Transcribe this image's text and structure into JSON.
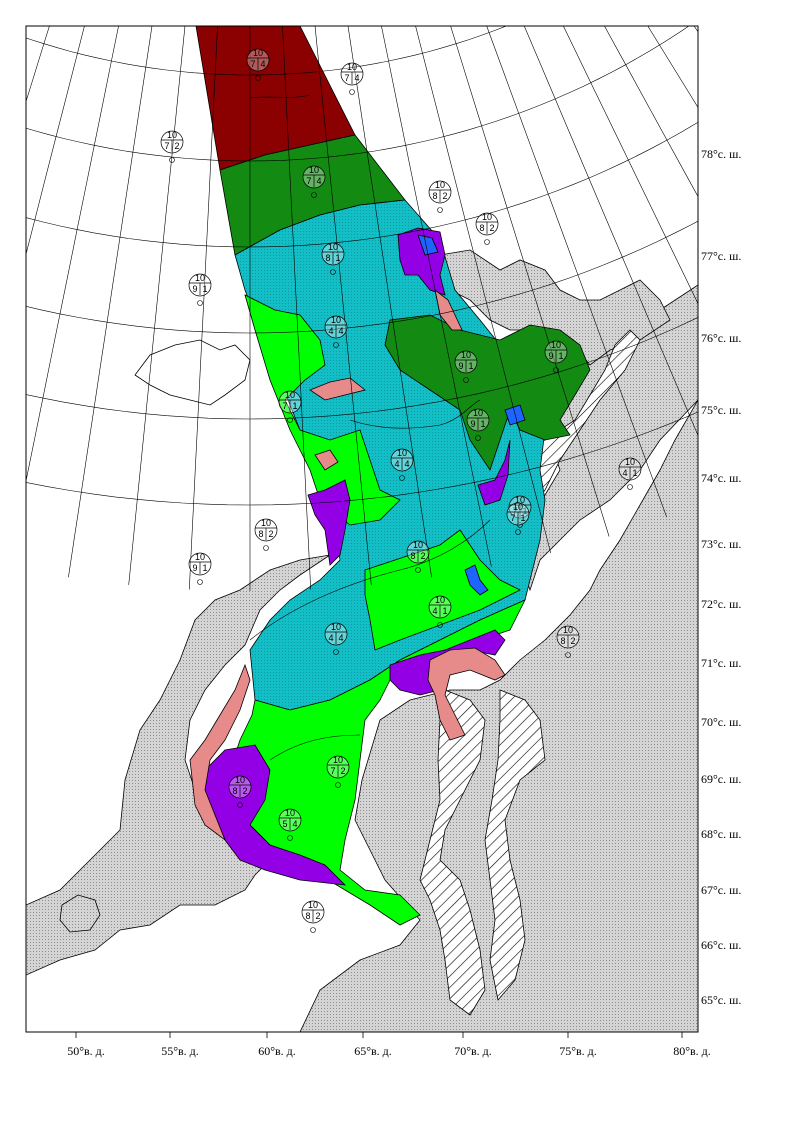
{
  "map": {
    "colors": {
      "background": "#ffffff",
      "land": "#d4d4d4",
      "ice_10_dark_red": "#8b0000",
      "ice_dark_green": "#138b13",
      "ice_cyan": "#12bfc6",
      "ice_light_green": "#00ff00",
      "ice_purple": "#9400e6",
      "ice_pink": "#e78a8a",
      "ice_blue": "#1e64ff",
      "fast_ice_hatch": "#000000"
    },
    "lat_labels": [
      {
        "lat": 78,
        "text": "78°с. ш."
      },
      {
        "lat": 77,
        "text": "77°с. ш."
      },
      {
        "lat": 76,
        "text": "76°с. ш."
      },
      {
        "lat": 75,
        "text": "75°с. ш."
      },
      {
        "lat": 74,
        "text": "74°с. ш."
      },
      {
        "lat": 73,
        "text": "73°с. ш."
      },
      {
        "lat": 72,
        "text": "72°с. ш."
      },
      {
        "lat": 71,
        "text": "71°с. ш."
      },
      {
        "lat": 70,
        "text": "70°с. ш."
      },
      {
        "lat": 69,
        "text": "69°с. ш."
      },
      {
        "lat": 68,
        "text": "68°с. ш."
      },
      {
        "lat": 67,
        "text": "67°с. ш."
      },
      {
        "lat": 66,
        "text": "66°с. ш."
      },
      {
        "lat": 65,
        "text": "65°с. ш."
      }
    ],
    "lon_labels": [
      {
        "lon": 50,
        "text": "50°в. д."
      },
      {
        "lon": 55,
        "text": "55°в. д."
      },
      {
        "lon": 60,
        "text": "60°в. д."
      },
      {
        "lon": 65,
        "text": "65°в. д."
      },
      {
        "lon": 70,
        "text": "70°в. д."
      },
      {
        "lon": 75,
        "text": "75°в. д."
      },
      {
        "lon": 80,
        "text": "80°в. д."
      }
    ],
    "ice_codes": [
      {
        "id": "c1",
        "top": "10",
        "mid": [
          "7",
          "4"
        ]
      },
      {
        "id": "c2",
        "top": "10",
        "mid": [
          "7",
          "4"
        ]
      },
      {
        "id": "c3",
        "top": "10",
        "mid": [
          "7",
          "2"
        ]
      },
      {
        "id": "c4",
        "top": "10",
        "mid": [
          "7",
          "4"
        ]
      },
      {
        "id": "c5",
        "top": "10",
        "mid": [
          "8",
          "2"
        ]
      },
      {
        "id": "c6",
        "top": "10",
        "mid": [
          "8",
          "2"
        ]
      },
      {
        "id": "c7",
        "top": "10",
        "mid": [
          "8",
          "1"
        ]
      },
      {
        "id": "c8",
        "top": "10",
        "mid": [
          "9",
          "1"
        ]
      },
      {
        "id": "c9",
        "top": "10",
        "mid": [
          "4",
          "4"
        ]
      },
      {
        "id": "c10",
        "top": "10",
        "mid": [
          "9",
          "1"
        ]
      },
      {
        "id": "c11",
        "top": "10",
        "mid": [
          "9",
          "1"
        ]
      },
      {
        "id": "c12",
        "top": "10",
        "mid": [
          "7",
          "1"
        ]
      },
      {
        "id": "c13",
        "top": "10",
        "mid": [
          "9",
          "1"
        ]
      },
      {
        "id": "c14",
        "top": "10",
        "mid": [
          "4",
          "4"
        ]
      },
      {
        "id": "c15",
        "top": "10",
        "mid": [
          "4",
          "1"
        ]
      },
      {
        "id": "c16",
        "top": "10",
        "mid": [
          "8",
          "2"
        ]
      },
      {
        "id": "c17",
        "top": "10",
        "mid": [
          "7",
          "1"
        ]
      },
      {
        "id": "c18",
        "top": "10",
        "mid": [
          "9",
          "1"
        ]
      },
      {
        "id": "c19",
        "top": "10",
        "mid": [
          "8",
          "2"
        ]
      },
      {
        "id": "c20",
        "top": "10",
        "mid": [
          "4",
          "1"
        ]
      },
      {
        "id": "c21",
        "top": "10",
        "mid": [
          "7",
          "1"
        ]
      },
      {
        "id": "c22",
        "top": "10",
        "mid": [
          "4",
          "4"
        ]
      },
      {
        "id": "c23",
        "top": "10",
        "mid": [
          "8",
          "2"
        ]
      },
      {
        "id": "c24",
        "top": "10",
        "mid": [
          "7",
          "2"
        ]
      },
      {
        "id": "c25",
        "top": "10",
        "mid": [
          "8",
          "2"
        ]
      },
      {
        "id": "c26",
        "top": "10",
        "mid": [
          "5",
          "4"
        ]
      },
      {
        "id": "c27",
        "top": "10",
        "mid": [
          "8",
          "2"
        ]
      }
    ]
  }
}
